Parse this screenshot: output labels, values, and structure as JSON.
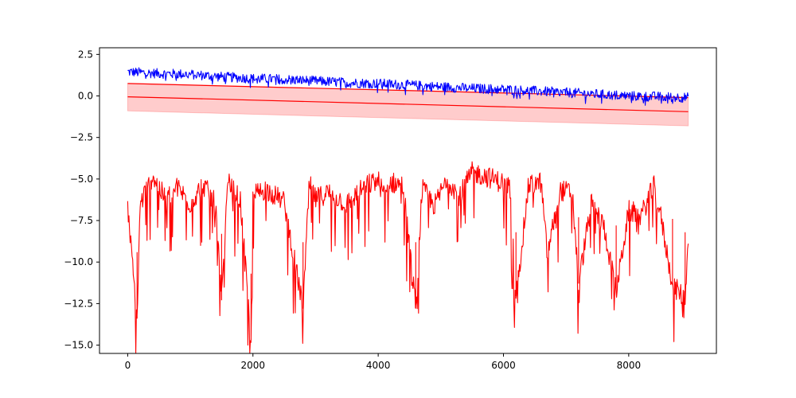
{
  "chart_data": {
    "type": "line",
    "title": "",
    "xlabel": "",
    "ylabel": "",
    "xlim": [
      -450,
      9400
    ],
    "ylim": [
      -15.5,
      2.9
    ],
    "x_ticks": [
      0,
      2000,
      4000,
      6000,
      8000
    ],
    "x_tick_labels": [
      "0",
      "2000",
      "4000",
      "6000",
      "8000"
    ],
    "y_ticks": [
      2.5,
      0.0,
      -2.5,
      -5.0,
      -7.5,
      -10.0,
      -12.5,
      -15.0
    ],
    "y_tick_labels": [
      "2.5",
      "0.0",
      "−2.5",
      "−5.0",
      "−7.5",
      "−10.0",
      "−12.5",
      "−15.0"
    ],
    "grid": false,
    "legend": "none",
    "series": [
      {
        "color": "#0000ff",
        "style": "noisy line",
        "x": [
          0,
          500,
          1000,
          1500,
          2000,
          2500,
          3000,
          3500,
          4000,
          4500,
          5000,
          5500,
          6000,
          6500,
          7000,
          7500,
          8000,
          8500,
          8950
        ],
        "values": [
          1.45,
          1.35,
          1.3,
          1.15,
          1.05,
          1.0,
          0.9,
          0.8,
          0.75,
          0.65,
          0.55,
          0.45,
          0.4,
          0.3,
          0.2,
          0.1,
          0.0,
          -0.05,
          -0.1
        ]
      },
      {
        "color": "#ff0000",
        "style": "trend line",
        "x": [
          0,
          8950
        ],
        "values": [
          -0.05,
          -0.95
        ]
      },
      {
        "color": "#ff0000",
        "style": "upper bound line",
        "x": [
          0,
          8950
        ],
        "values": [
          0.75,
          -0.1
        ]
      },
      {
        "color": "#ff0000",
        "style": "band fill",
        "x": [
          0,
          8950
        ],
        "lower": [
          -0.9,
          -1.8
        ],
        "upper": [
          0.75,
          -0.1
        ]
      },
      {
        "color": "#ff0000",
        "style": "noisy line",
        "x": [
          0,
          150,
          200,
          400,
          600,
          800,
          1000,
          1200,
          1400,
          1500,
          1600,
          1800,
          1970,
          2000,
          2200,
          2500,
          2800,
          2900,
          3000,
          3200,
          3500,
          3800,
          4000,
          4100,
          4200,
          4400,
          4600,
          4700,
          4900,
          5100,
          5300,
          5500,
          5700,
          5900,
          6100,
          6200,
          6400,
          6600,
          6700,
          6900,
          7100,
          7200,
          7400,
          7600,
          7800,
          8000,
          8200,
          8400,
          8500,
          8700,
          8900,
          8950
        ],
        "values": [
          -6.8,
          -13.4,
          -6.5,
          -4.8,
          -6.2,
          -5.5,
          -6.5,
          -5.3,
          -6.5,
          -12.3,
          -5.2,
          -6.3,
          -14.7,
          -6.0,
          -5.6,
          -6.4,
          -12.8,
          -5.3,
          -6.2,
          -5.8,
          -6.5,
          -5.4,
          -5.1,
          -6.0,
          -5.2,
          -5.4,
          -12.8,
          -5.6,
          -6.6,
          -5.0,
          -6.0,
          -4.6,
          -4.8,
          -5.1,
          -5.4,
          -12.2,
          -5.4,
          -5.2,
          -9.6,
          -5.7,
          -5.8,
          -11.3,
          -6.5,
          -7.8,
          -11.8,
          -6.9,
          -7.2,
          -5.4,
          -7.0,
          -11.4,
          -12.2,
          -8.5
        ]
      }
    ]
  }
}
